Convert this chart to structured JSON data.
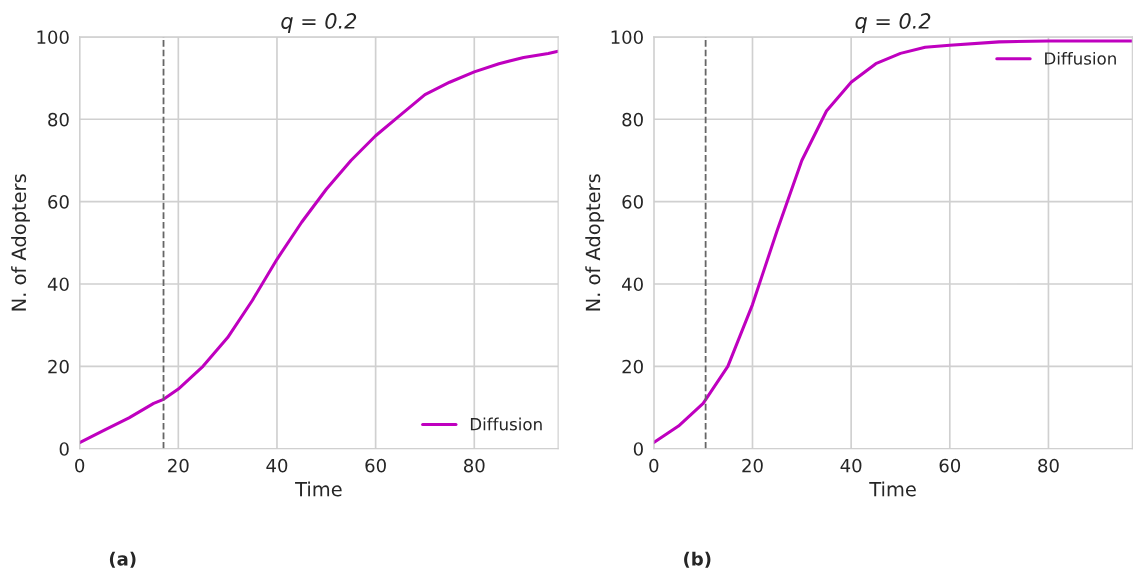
{
  "chart_data": [
    {
      "type": "line",
      "title": "q = 0.2",
      "xlabel": "Time",
      "ylabel": "N. of Adopters",
      "x": [
        0,
        5,
        10,
        15,
        17,
        20,
        25,
        30,
        35,
        40,
        45,
        50,
        55,
        60,
        65,
        70,
        75,
        80,
        85,
        90,
        95,
        97
      ],
      "series": [
        {
          "name": "Diffusion",
          "color": "#bf00bf",
          "values": [
            1.5,
            4.5,
            7.5,
            11,
            12,
            14.5,
            20,
            27,
            36,
            46,
            55,
            63,
            70,
            76,
            81,
            86,
            89,
            91.5,
            93.5,
            95,
            96,
            96.5
          ]
        }
      ],
      "xlim": [
        0,
        97
      ],
      "xticks": [
        0,
        20,
        40,
        60,
        80
      ],
      "ylim": [
        0,
        100
      ],
      "yticks": [
        0,
        20,
        40,
        60,
        80,
        100
      ],
      "ref_lines": [
        {
          "axis": "x",
          "value": 17,
          "color": "#666666",
          "line_style": "dashed"
        }
      ],
      "grid": true,
      "legend": "lower right",
      "annotations": [
        "(a)"
      ]
    },
    {
      "type": "line",
      "title": "q = 0.2",
      "xlabel": "Time",
      "ylabel": "N. of Adopters",
      "x": [
        0,
        5,
        10,
        15,
        20,
        25,
        30,
        35,
        40,
        45,
        50,
        55,
        60,
        70,
        80,
        90,
        97
      ],
      "series": [
        {
          "name": "Diffusion",
          "color": "#bf00bf",
          "values": [
            1.5,
            5.5,
            11,
            20,
            35,
            53,
            70,
            82,
            89,
            93.5,
            96,
            97.5,
            98,
            98.8,
            99,
            99,
            99
          ]
        }
      ],
      "xlim": [
        0,
        97
      ],
      "xticks": [
        0,
        20,
        40,
        60,
        80
      ],
      "ylim": [
        0,
        100
      ],
      "yticks": [
        0,
        20,
        40,
        60,
        80,
        100
      ],
      "ref_lines": [
        {
          "axis": "x",
          "value": 10.5,
          "color": "#666666",
          "line_style": "dashed"
        }
      ],
      "grid": true,
      "legend": "upper right",
      "annotations": [
        "(b)"
      ]
    }
  ]
}
